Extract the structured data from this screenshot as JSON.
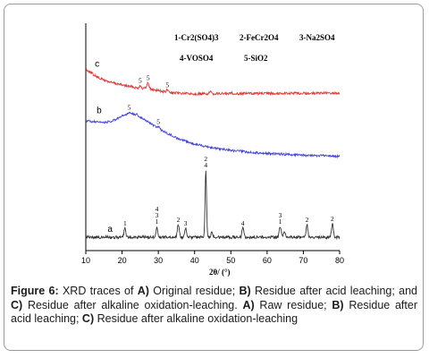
{
  "chart_data": {
    "type": "line",
    "xlabel": "2θ/ (°)",
    "xlim": [
      10,
      80
    ],
    "x_ticks": [
      "10",
      "20",
      "30",
      "40",
      "50",
      "60",
      "70",
      "80"
    ],
    "legend": [
      "1-Cr2(SO4)3",
      "2-FeCr2O4",
      "3-Na2SO4",
      "4-VOSO4",
      "5-SiO2"
    ],
    "legend_position": "top-right",
    "grid": false,
    "series": [
      {
        "name": "c",
        "color": "#e03a3a",
        "points": [
          [
            10,
            77
          ],
          [
            13,
            86
          ],
          [
            16,
            91
          ],
          [
            20,
            95
          ],
          [
            24,
            98
          ],
          [
            26,
            99
          ],
          [
            27,
            97
          ],
          [
            28,
            100
          ],
          [
            30,
            101
          ],
          [
            32,
            103
          ],
          [
            34,
            104
          ],
          [
            38,
            104.5
          ],
          [
            42,
            105
          ],
          [
            46,
            104.5
          ],
          [
            50,
            104.8
          ],
          [
            55,
            104.3
          ],
          [
            60,
            104.6
          ],
          [
            65,
            104.2
          ],
          [
            70,
            104.4
          ],
          [
            75,
            104.1
          ],
          [
            80,
            104.3
          ]
        ],
        "peaks": [
          {
            "x": 25,
            "h": 3,
            "label": "5"
          },
          {
            "x": 27.2,
            "h": 5,
            "label": "5"
          },
          {
            "x": 32.5,
            "h": 3,
            "label": "5"
          },
          {
            "x": 44.3,
            "h": 2,
            "label": ""
          },
          {
            "x": 50.2,
            "h": 1.5,
            "label": ""
          }
        ]
      },
      {
        "name": "b",
        "color": "#4242d6",
        "points": [
          [
            10,
            135
          ],
          [
            14,
            137
          ],
          [
            17,
            136
          ],
          [
            19,
            132
          ],
          [
            21,
            128
          ],
          [
            22.5,
            127
          ],
          [
            24,
            128
          ],
          [
            26,
            133
          ],
          [
            29,
            141
          ],
          [
            32,
            148
          ],
          [
            36,
            156
          ],
          [
            40,
            161
          ],
          [
            45,
            165
          ],
          [
            50,
            168
          ],
          [
            55,
            170
          ],
          [
            60,
            171.5
          ],
          [
            65,
            172.5
          ],
          [
            70,
            173.5
          ],
          [
            75,
            174
          ],
          [
            80,
            174.5
          ]
        ],
        "peaks": [
          {
            "x": 22,
            "h": 2,
            "label": "5"
          },
          {
            "x": 30,
            "h": 2,
            "label": "5"
          }
        ]
      },
      {
        "name": "a",
        "color": "#333333",
        "points": [
          [
            10,
            265
          ],
          [
            20,
            265
          ],
          [
            30,
            265
          ],
          [
            40,
            265
          ],
          [
            50,
            265
          ],
          [
            60,
            265
          ],
          [
            70,
            265
          ],
          [
            80,
            265
          ]
        ],
        "peaks": [
          {
            "x": 20.8,
            "h": 10,
            "label": "1"
          },
          {
            "x": 29.6,
            "h": 12,
            "label": "4\n3\n1"
          },
          {
            "x": 35.5,
            "h": 14,
            "label": "2"
          },
          {
            "x": 37.5,
            "h": 10,
            "label": "3"
          },
          {
            "x": 43.1,
            "h": 75,
            "label": "2\n4"
          },
          {
            "x": 44.8,
            "h": 6,
            "label": ""
          },
          {
            "x": 53.3,
            "h": 10,
            "label": "4"
          },
          {
            "x": 63.6,
            "h": 12,
            "label": "3\n1"
          },
          {
            "x": 64.8,
            "h": 5,
            "label": ""
          },
          {
            "x": 71,
            "h": 14,
            "label": "2"
          },
          {
            "x": 78,
            "h": 15,
            "label": "2"
          }
        ]
      }
    ]
  },
  "caption": {
    "label": "Figure 6:",
    "text_1": " XRD traces of ",
    "a1": "A)",
    "text_2": " Original residue; ",
    "b1": "B)",
    "text_3": " Residue after acid leaching; and ",
    "c1": "C)",
    "text_4": " Residue after alkaline oxidation-leaching. ",
    "a2": "A)",
    "text_5": " Raw residue; ",
    "b2": "B)",
    "text_6": " Residue after acid leaching; ",
    "c2": "C)",
    "text_7": " Residue after alkaline oxidation-leaching"
  }
}
